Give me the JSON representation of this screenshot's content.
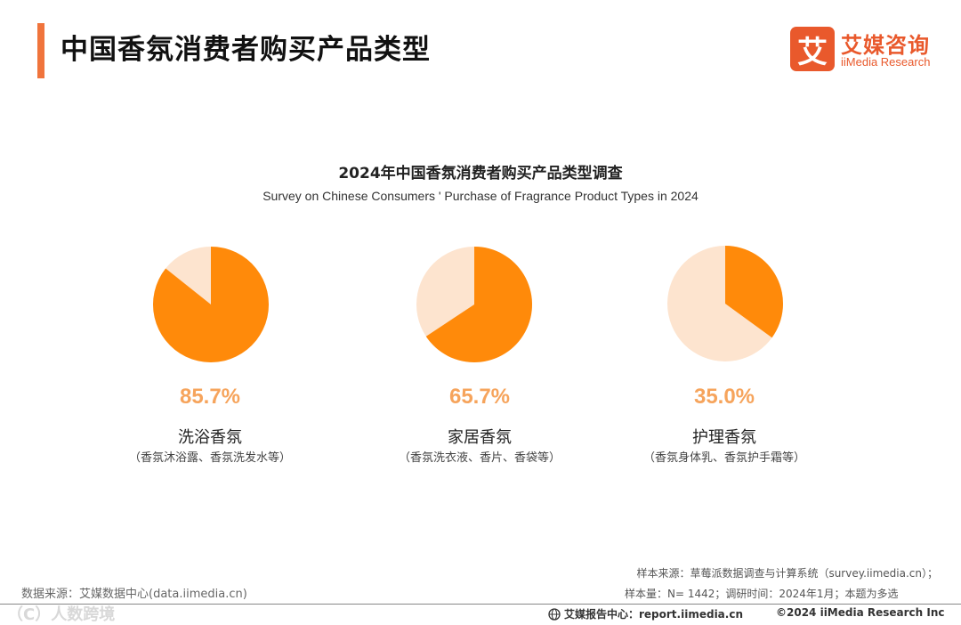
{
  "page": {
    "title": "中国香氛消费者购买产品类型"
  },
  "brand": {
    "mark": "艾",
    "name_cn": "艾媒咨询",
    "name_en": "iiMedia Research",
    "color": "#e9592c"
  },
  "colors": {
    "primary": "#ff8a0a",
    "light": "#fde4cf",
    "label": "#f6a45c",
    "accent_bar": "#f0743c"
  },
  "chart_data": {
    "type": "pie",
    "title": "2024年中国香氛消费者购买产品类型调查",
    "subtitle": "Survey on Chinese Consumers ' Purchase of Fragrance Product Types in 2024",
    "unit": "%",
    "items": [
      {
        "category": "洗浴香氛",
        "note": "（香氛沐浴露、香氛洗发水等）",
        "value": 85.7,
        "label": "85.7%"
      },
      {
        "category": "家居香氛",
        "note": "（香氛洗衣液、香片、香袋等）",
        "value": 65.7,
        "label": "65.7%"
      },
      {
        "category": "护理香氛",
        "note": "（香氛身体乳、香氛护手霜等）",
        "value": 35.0,
        "label": "35.0%"
      }
    ]
  },
  "footer": {
    "source": "数据来源：艾媒数据中心(data.iimedia.cn)",
    "watermark": "（C）人数跨境",
    "sample_source": "样本来源：草莓派数据调查与计算系统（survey.iimedia.cn）；",
    "sample_info": "样本量：N= 1442；调研时间：2024年1月；本题为多选",
    "report_center": "艾媒报告中心：report.iimedia.cn",
    "copyright": "©2024  iiMedia Research  Inc"
  }
}
